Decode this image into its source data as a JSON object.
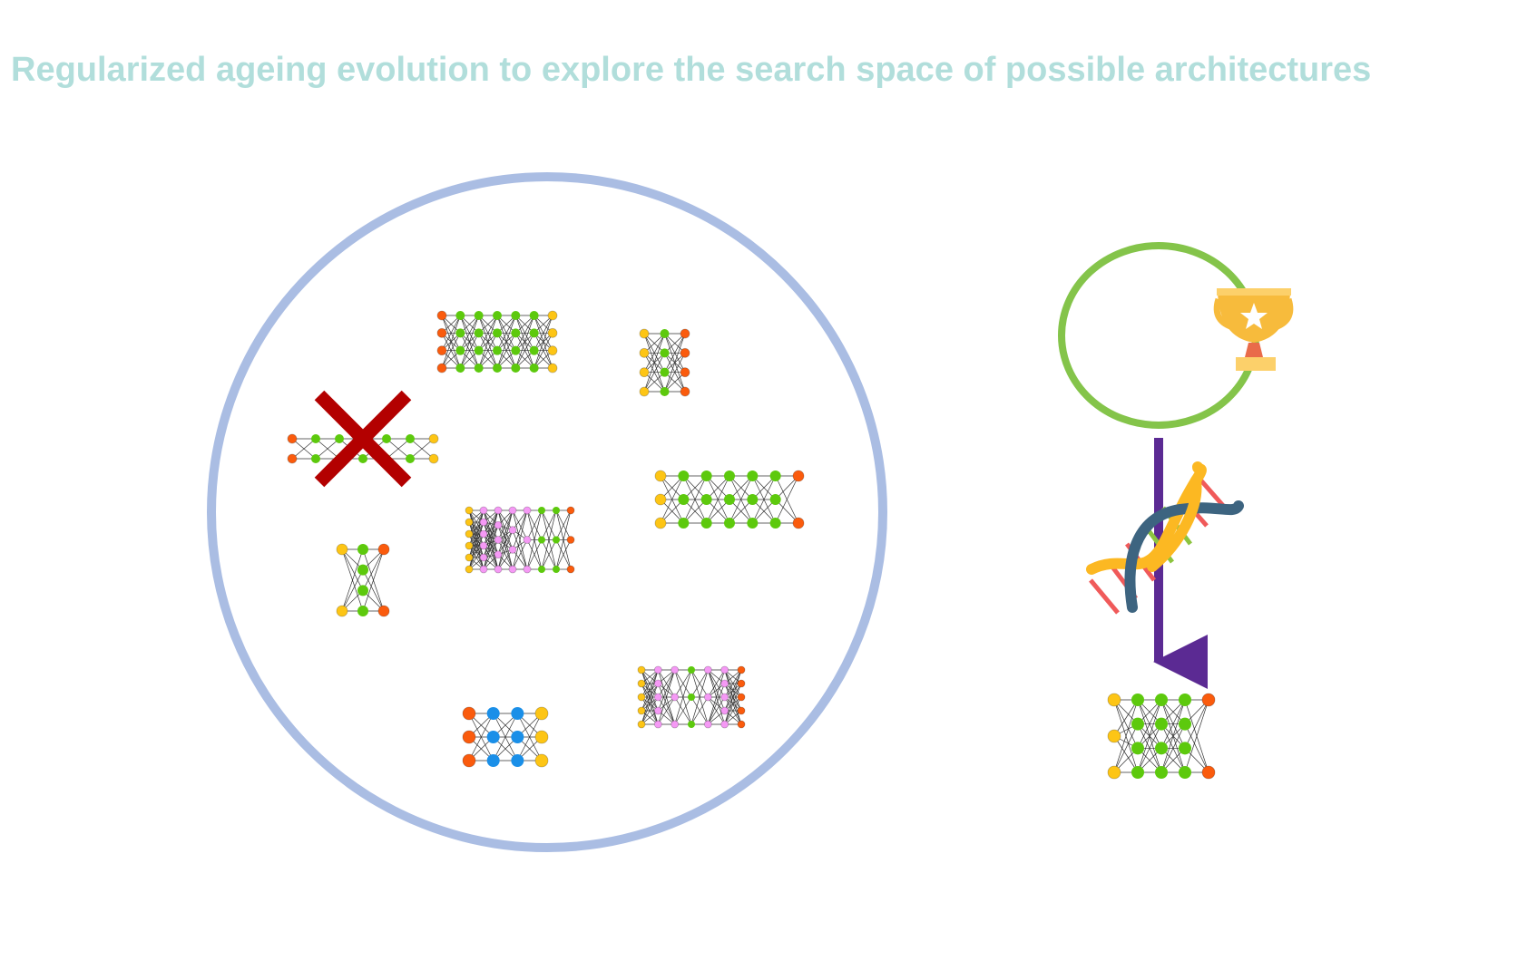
{
  "title": "Regularized ageing evolution to explore the search space of possible architectures",
  "colors": {
    "title": "#b1dedb",
    "population_ring": "#aabde3",
    "tournament_ring": "#84c44a",
    "mutation_arrow": "#5b2a93",
    "remove_cross": "#b30000",
    "node_green": "#5dc90d",
    "node_yellow": "#fdc515",
    "node_orange": "#fa5b0d",
    "node_pink": "#f599f5",
    "node_blue": "#1a8fe8",
    "trophy": "#f7bb3c",
    "dna_strand_a": "#fcb822",
    "dna_strand_b": "#3d6480",
    "dna_rung_a": "#f05a5a",
    "dna_rung_b": "#8cc43f"
  },
  "icons": {
    "remove": "x-mark-icon",
    "winner": "trophy-icon",
    "mutation": "dna-helix-icon",
    "mutation_flow": "down-arrow-icon"
  },
  "population": {
    "architectures": [
      {
        "name": "network-architecture-a",
        "layers": [
          "O",
          "G",
          "G",
          "G",
          "G",
          "G",
          "Y"
        ],
        "status": "removed"
      },
      {
        "name": "network-architecture-b",
        "layers": [
          "O",
          "G",
          "G",
          "G",
          "G",
          "G",
          "Y"
        ],
        "status": "alive"
      },
      {
        "name": "network-architecture-c",
        "layers": [
          "Y",
          "G",
          "O"
        ],
        "status": "alive"
      },
      {
        "name": "network-architecture-d",
        "layers": [
          "Y",
          "G",
          "G",
          "G",
          "G",
          "G",
          "O"
        ],
        "status": "alive"
      },
      {
        "name": "network-architecture-e",
        "layers": [
          "Y",
          "P",
          "P",
          "P",
          "P",
          "G",
          "G",
          "O"
        ],
        "status": "alive"
      },
      {
        "name": "network-architecture-f",
        "layers": [
          "Y",
          "G",
          "O"
        ],
        "status": "alive"
      },
      {
        "name": "network-architecture-g",
        "layers": [
          "O",
          "B",
          "B",
          "Y"
        ],
        "status": "alive"
      },
      {
        "name": "network-architecture-h",
        "layers": [
          "Y",
          "P",
          "P",
          "G",
          "P",
          "P",
          "O"
        ],
        "status": "alive"
      }
    ]
  },
  "child": {
    "name": "mutated-child-network",
    "layers": [
      "Y",
      "G",
      "G",
      "G",
      "O"
    ]
  }
}
